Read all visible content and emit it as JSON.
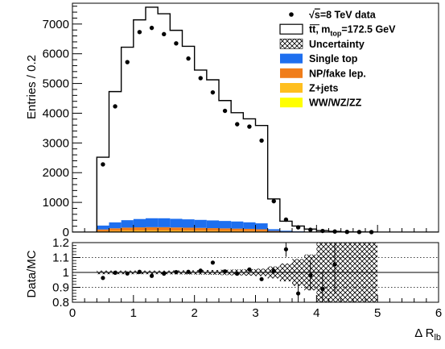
{
  "chart_data": [
    {
      "panel": "main",
      "type": "histogram",
      "ylabel": "Entries / 0.2",
      "ylim": [
        0,
        7700
      ],
      "yticks": [
        0,
        1000,
        2000,
        3000,
        4000,
        5000,
        6000,
        7000
      ],
      "xlim": [
        0,
        6
      ],
      "bin_width": 0.2,
      "bin_edges": [
        0.4,
        0.6,
        0.8,
        1.0,
        1.2,
        1.4,
        1.6,
        1.8,
        2.0,
        2.2,
        2.4,
        2.6,
        2.8,
        3.0,
        3.2,
        3.4,
        3.6,
        3.8,
        4.0,
        4.2,
        4.4,
        4.6,
        4.8,
        5.0
      ],
      "series": [
        {
          "name": "√s=8 TeV data",
          "style": "points",
          "color": "#000000",
          "x": [
            0.5,
            0.7,
            0.9,
            1.1,
            1.3,
            1.5,
            1.7,
            1.9,
            2.1,
            2.3,
            2.5,
            2.7,
            2.9,
            3.1,
            3.3,
            3.5,
            3.7,
            3.9,
            4.1,
            4.3,
            4.5,
            4.7,
            4.9
          ],
          "values": [
            2280,
            4230,
            5720,
            6730,
            6870,
            6660,
            6350,
            5840,
            5180,
            4700,
            4080,
            3630,
            3550,
            3080,
            1040,
            420,
            160,
            80,
            40,
            20,
            8,
            4,
            2
          ]
        },
        {
          "name": "tt, m_top=172.5 GeV",
          "style": "step",
          "color": "#000000",
          "values": [
            2300,
            4400,
            5820,
            6700,
            7100,
            6880,
            6340,
            5820,
            5040,
            4730,
            4050,
            3660,
            3480,
            3290,
            1020,
            320,
            180,
            90,
            45,
            20,
            8,
            3,
            1
          ]
        },
        {
          "name": "Single top",
          "style": "filled",
          "color": "#1e6fef",
          "values": [
            130,
            200,
            250,
            280,
            300,
            300,
            290,
            280,
            270,
            260,
            250,
            240,
            220,
            200,
            60,
            30,
            15,
            8,
            4,
            2,
            1,
            0.5,
            0.2
          ]
        },
        {
          "name": "NP/fake lep.",
          "style": "filled",
          "color": "#f07d1a",
          "values": [
            60,
            85,
            100,
            105,
            110,
            110,
            105,
            100,
            95,
            90,
            85,
            80,
            75,
            65,
            25,
            12,
            6,
            3,
            2,
            1,
            0.5,
            0.2,
            0.1
          ]
        },
        {
          "name": "Z+jets",
          "style": "filled",
          "color": "#ffbf1f",
          "values": [
            25,
            35,
            42,
            45,
            46,
            45,
            43,
            40,
            38,
            35,
            33,
            30,
            28,
            25,
            10,
            5,
            3,
            1.5,
            1,
            0.5,
            0.2,
            0.1,
            0.05
          ]
        },
        {
          "name": "WW/WZ/ZZ",
          "style": "filled",
          "color": "#ffff00",
          "values": [
            6,
            8,
            10,
            11,
            11,
            11,
            10,
            10,
            9,
            9,
            8,
            8,
            7,
            6,
            3,
            1,
            0.5,
            0.3,
            0.2,
            0.1,
            0.05,
            0.02,
            0.01
          ]
        }
      ],
      "legend": {
        "placement": "top-right",
        "entries": [
          {
            "marker": "point",
            "label_pre": "√",
            "label_sqrt": "s",
            "label_post": "=8 TeV data"
          },
          {
            "marker": "line-box",
            "label_pre": "tt, m",
            "label_sub": "top",
            "label_post": "=172.5 GeV"
          },
          {
            "marker": "hatch",
            "label": "Uncertainty"
          },
          {
            "marker": "fill",
            "color": "#1e6fef",
            "label": "Single top"
          },
          {
            "marker": "fill",
            "color": "#f07d1a",
            "label": "NP/fake lep."
          },
          {
            "marker": "fill",
            "color": "#ffbf1f",
            "label": "Z+jets"
          },
          {
            "marker": "fill",
            "color": "#ffff00",
            "label": "WW/WZ/ZZ"
          }
        ]
      }
    },
    {
      "panel": "ratio",
      "type": "scatter",
      "ylabel": "Data/MC",
      "xlabel_main": "Δ R",
      "xlabel_sub": "lb",
      "ylim": [
        0.8,
        1.2
      ],
      "yticks": [
        0.8,
        0.9,
        1,
        1.1,
        1.2
      ],
      "xlim": [
        0,
        6
      ],
      "xticks": [
        0,
        1,
        2,
        3,
        4,
        5,
        6
      ],
      "grid": "dotted at 0.9 and 1.1, solid at 1",
      "uncertainty_band": {
        "x_edges": [
          0.4,
          0.6,
          0.8,
          1.0,
          1.2,
          1.4,
          1.6,
          1.8,
          2.0,
          2.2,
          2.4,
          2.6,
          2.8,
          3.0,
          3.2,
          3.4,
          3.6,
          3.8,
          4.0,
          4.2,
          4.4,
          4.6,
          4.8,
          5.0
        ],
        "halfwidth": [
          0.012,
          0.012,
          0.012,
          0.012,
          0.012,
          0.012,
          0.013,
          0.014,
          0.015,
          0.016,
          0.018,
          0.02,
          0.022,
          0.025,
          0.04,
          0.06,
          0.09,
          0.12,
          0.2,
          0.2,
          0.2,
          0.2,
          0.2
        ]
      },
      "points": {
        "x": [
          0.5,
          0.7,
          0.9,
          1.1,
          1.3,
          1.5,
          1.7,
          1.9,
          2.1,
          2.3,
          2.5,
          2.7,
          2.9,
          3.1,
          3.3,
          3.5,
          3.7,
          3.9,
          4.1,
          4.3
        ],
        "values": [
          0.963,
          0.998,
          0.993,
          1.004,
          0.977,
          0.992,
          1.002,
          1.004,
          1.012,
          1.066,
          1.007,
          0.992,
          1.02,
          0.955,
          1.01,
          1.155,
          0.859,
          0.98,
          0.888,
          1.055
        ],
        "err": [
          0.01,
          0.008,
          0.007,
          0.006,
          0.006,
          0.006,
          0.006,
          0.006,
          0.007,
          0.008,
          0.008,
          0.009,
          0.01,
          0.01,
          0.02,
          0.05,
          0.06,
          0.1,
          0.12,
          0.2
        ]
      }
    }
  ]
}
